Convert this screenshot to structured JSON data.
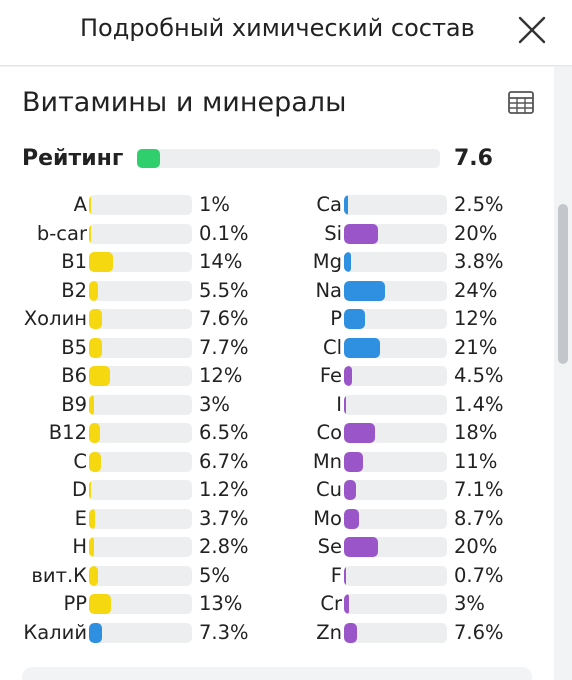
{
  "header": {
    "title": "Подробный химический состав",
    "close_icon": "close-icon"
  },
  "section": {
    "heading": "Витамины и минералы",
    "table_icon": "table-icon",
    "rating": {
      "label": "Рейтинг",
      "value": "7.6",
      "fill_fraction": 0.076,
      "color": "#2fcf6e"
    }
  },
  "colors": {
    "vitamin": "#f5d80f",
    "mineral_blue": "#2f8fe0",
    "mineral_purple": "#9a55c9"
  },
  "vitamins": [
    {
      "name": "A",
      "pct": "1%",
      "value": 1
    },
    {
      "name": "b-car",
      "pct": "0.1%",
      "value": 0.1
    },
    {
      "name": "B1",
      "pct": "14%",
      "value": 14
    },
    {
      "name": "B2",
      "pct": "5.5%",
      "value": 5.5
    },
    {
      "name": "Холин",
      "pct": "7.6%",
      "value": 7.6
    },
    {
      "name": "B5",
      "pct": "7.7%",
      "value": 7.7
    },
    {
      "name": "B6",
      "pct": "12%",
      "value": 12
    },
    {
      "name": "B9",
      "pct": "3%",
      "value": 3
    },
    {
      "name": "B12",
      "pct": "6.5%",
      "value": 6.5
    },
    {
      "name": "C",
      "pct": "6.7%",
      "value": 6.7
    },
    {
      "name": "D",
      "pct": "1.2%",
      "value": 1.2
    },
    {
      "name": "E",
      "pct": "3.7%",
      "value": 3.7
    },
    {
      "name": "H",
      "pct": "2.8%",
      "value": 2.8
    },
    {
      "name": "вит.К",
      "pct": "5%",
      "value": 5
    },
    {
      "name": "PP",
      "pct": "13%",
      "value": 13
    },
    {
      "name": "Калий",
      "pct": "7.3%",
      "value": 7.3,
      "color": "#2f8fe0"
    }
  ],
  "minerals": [
    {
      "name": "Ca",
      "pct": "2.5%",
      "value": 2.5,
      "color": "#2f8fe0"
    },
    {
      "name": "Si",
      "pct": "20%",
      "value": 20,
      "color": "#9a55c9"
    },
    {
      "name": "Mg",
      "pct": "3.8%",
      "value": 3.8,
      "color": "#2f8fe0"
    },
    {
      "name": "Na",
      "pct": "24%",
      "value": 24,
      "color": "#2f8fe0"
    },
    {
      "name": "P",
      "pct": "12%",
      "value": 12,
      "color": "#2f8fe0"
    },
    {
      "name": "Cl",
      "pct": "21%",
      "value": 21,
      "color": "#2f8fe0"
    },
    {
      "name": "Fe",
      "pct": "4.5%",
      "value": 4.5,
      "color": "#9a55c9"
    },
    {
      "name": "I",
      "pct": "1.4%",
      "value": 1.4,
      "color": "#9a55c9"
    },
    {
      "name": "Co",
      "pct": "18%",
      "value": 18,
      "color": "#9a55c9"
    },
    {
      "name": "Mn",
      "pct": "11%",
      "value": 11,
      "color": "#9a55c9"
    },
    {
      "name": "Cu",
      "pct": "7.1%",
      "value": 7.1,
      "color": "#9a55c9"
    },
    {
      "name": "Mo",
      "pct": "8.7%",
      "value": 8.7,
      "color": "#9a55c9"
    },
    {
      "name": "Se",
      "pct": "20%",
      "value": 20,
      "color": "#9a55c9"
    },
    {
      "name": "F",
      "pct": "0.7%",
      "value": 0.7,
      "color": "#9a55c9"
    },
    {
      "name": "Cr",
      "pct": "3%",
      "value": 3,
      "color": "#9a55c9"
    },
    {
      "name": "Zn",
      "pct": "7.6%",
      "value": 7.6,
      "color": "#9a55c9"
    }
  ]
}
